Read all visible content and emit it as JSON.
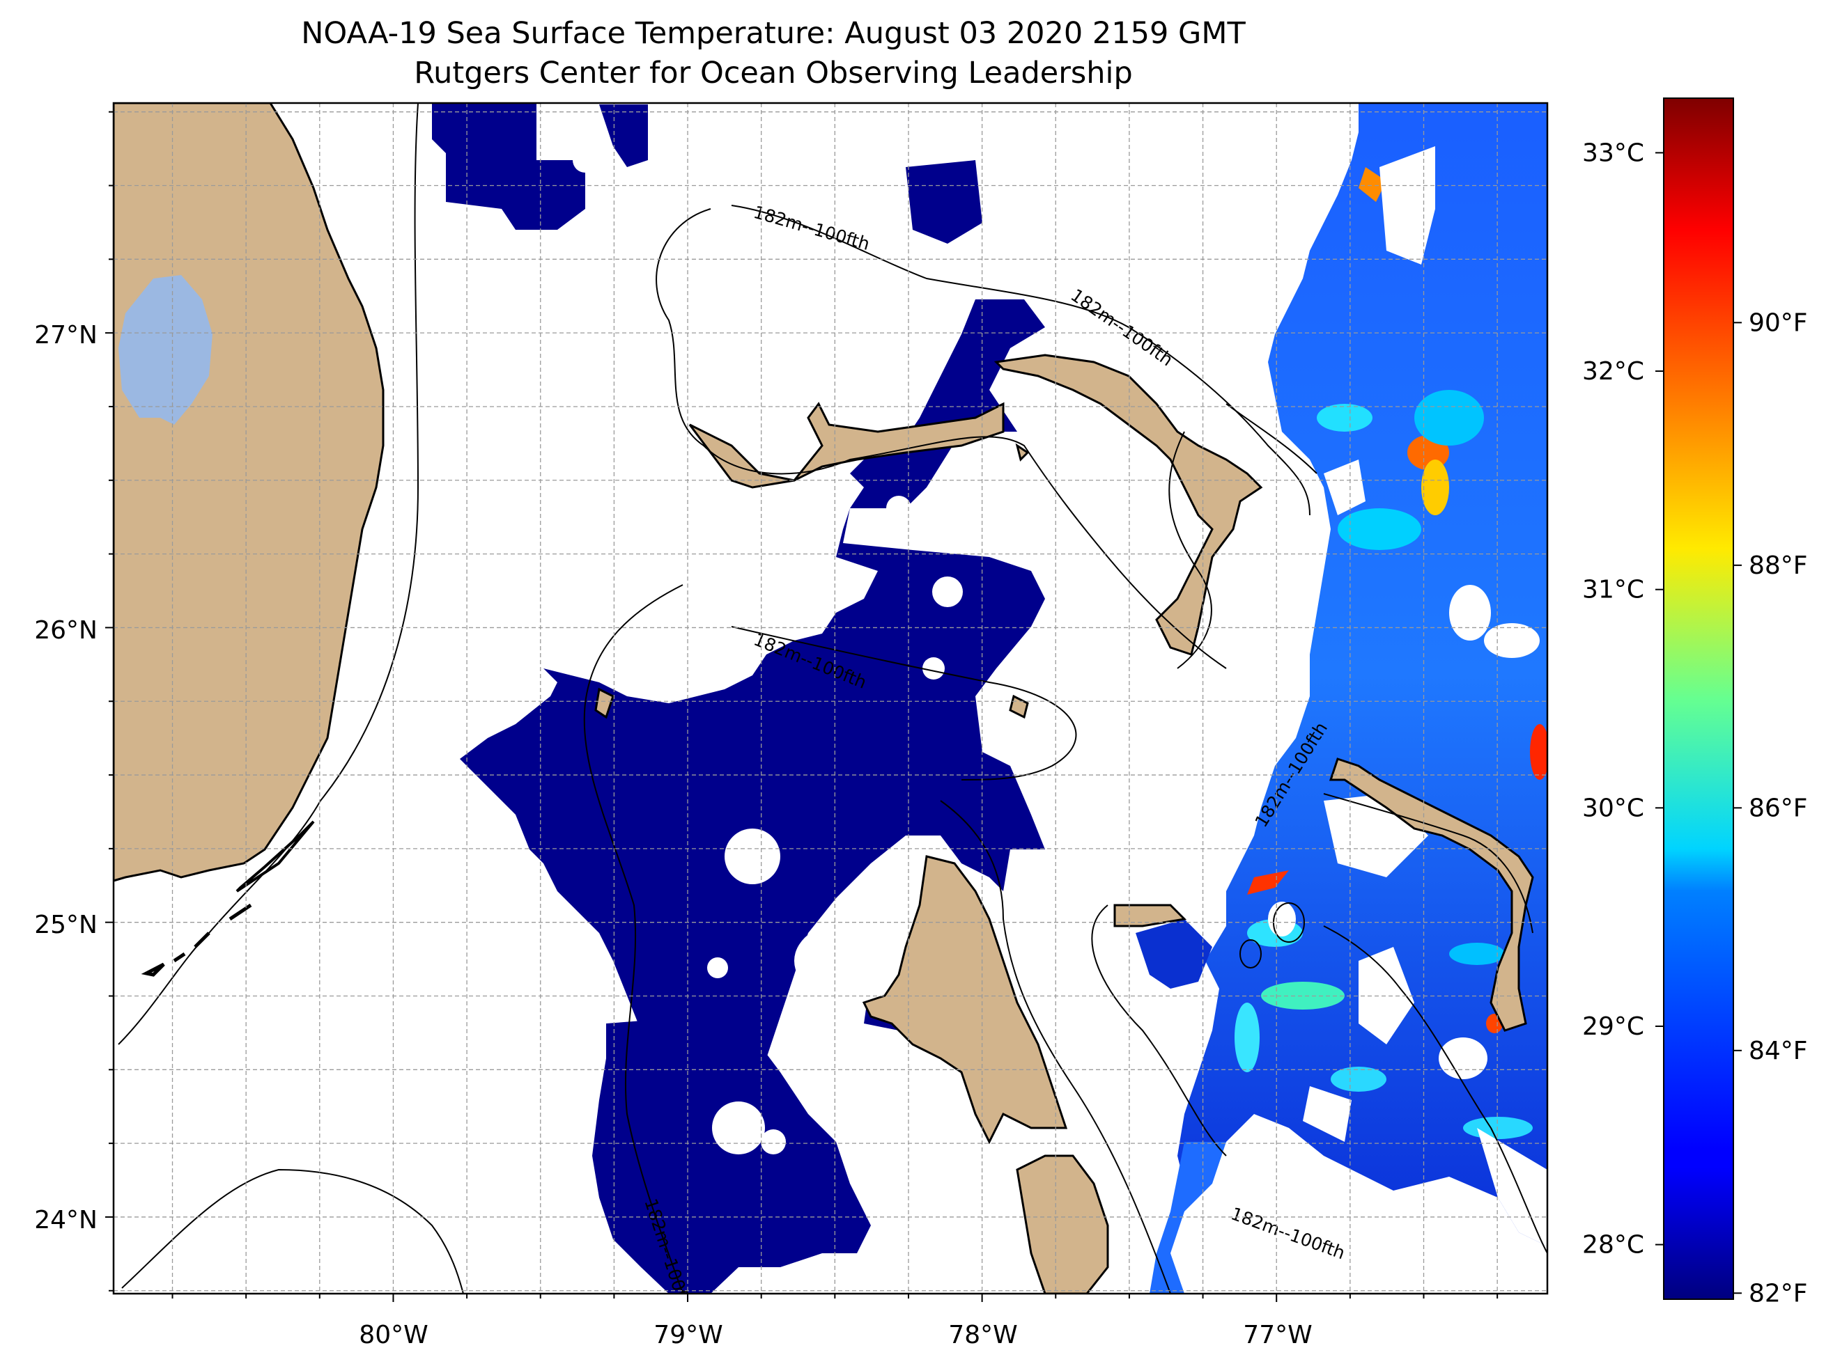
{
  "title": {
    "line1": "NOAA-19 Sea Surface Temperature: August 03 2020 2159 GMT",
    "line2": "Rutgers Center for Ocean Observing Leadership"
  },
  "map": {
    "lon_range": [
      -80.95,
      -76.08
    ],
    "lat_range": [
      23.74,
      27.78
    ],
    "lon_ticks": [
      {
        "value": -80,
        "label": "80°W"
      },
      {
        "value": -79,
        "label": "79°W"
      },
      {
        "value": -78,
        "label": "78°W"
      },
      {
        "value": -77,
        "label": "77°W"
      }
    ],
    "lat_ticks": [
      {
        "value": 27,
        "label": "27°N"
      },
      {
        "value": 26,
        "label": "26°N"
      },
      {
        "value": 25,
        "label": "25°N"
      },
      {
        "value": 24,
        "label": "24°N"
      }
    ],
    "grid": true,
    "land_color": "#d2b48c",
    "lake_color": "#9bb8e2",
    "ocean_color": "#ffffff",
    "contour_label": "182m--100fth"
  },
  "colorbar": {
    "celsius_range": [
      27.75,
      33.25
    ],
    "celsius_ticks": [
      {
        "value": 28,
        "label": "28°C"
      },
      {
        "value": 29,
        "label": "29°C"
      },
      {
        "value": 30,
        "label": "30°C"
      },
      {
        "value": 31,
        "label": "31°C"
      },
      {
        "value": 32,
        "label": "32°C"
      },
      {
        "value": 33,
        "label": "33°C"
      }
    ],
    "fahrenheit_ticks": [
      {
        "value": 82,
        "label": "82°F"
      },
      {
        "value": 84,
        "label": "84°F"
      },
      {
        "value": 86,
        "label": "86°F"
      },
      {
        "value": 88,
        "label": "88°F"
      },
      {
        "value": 90,
        "label": "90°F"
      }
    ],
    "colormap": "jet"
  }
}
